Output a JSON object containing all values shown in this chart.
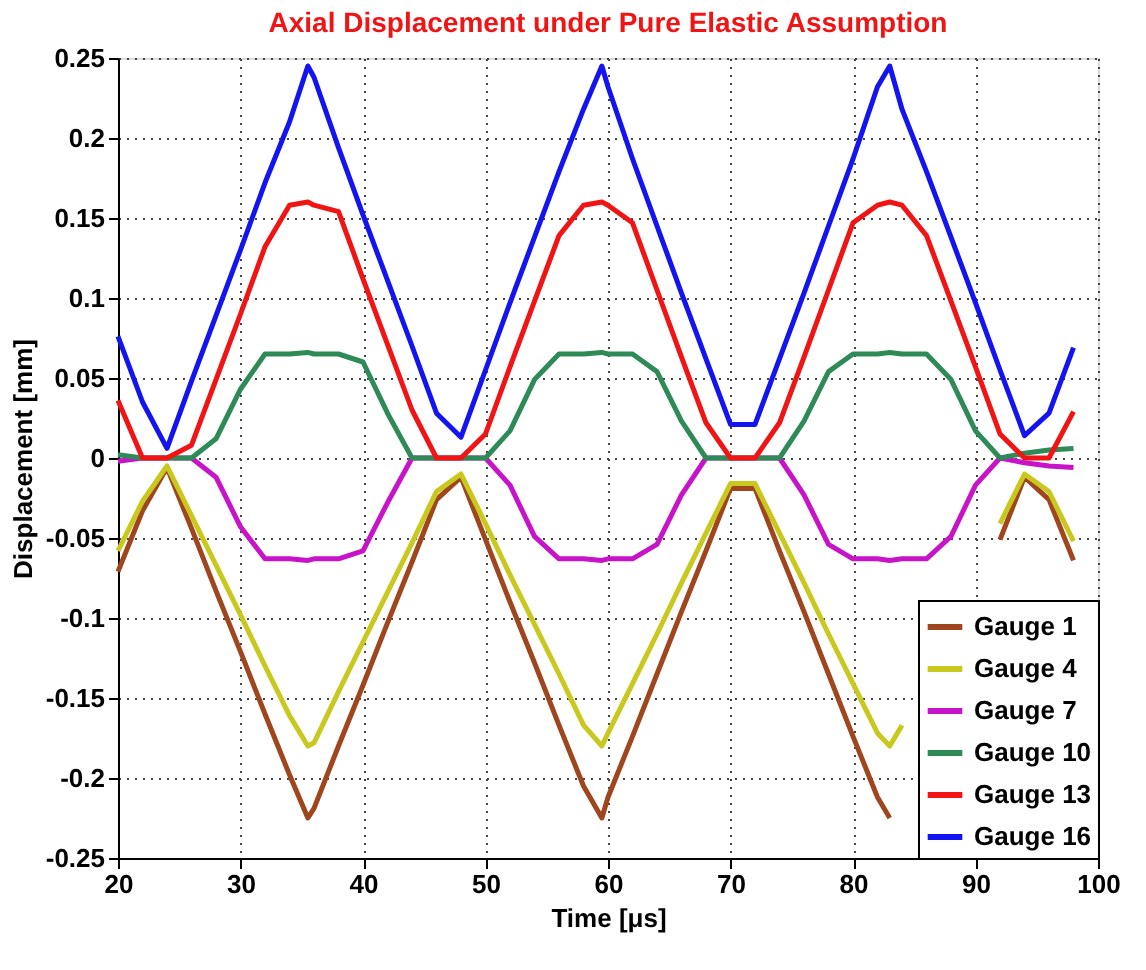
{
  "chart_data": {
    "type": "line",
    "title": "Axial Displacement under Pure Elastic Assumption",
    "xlabel": "Time [μs]",
    "ylabel": "Displacement [mm]",
    "x": [
      20,
      22,
      24,
      26,
      28,
      30,
      32,
      34,
      35.5,
      36,
      38,
      40,
      42,
      44,
      46,
      48,
      50,
      52,
      54,
      56,
      58,
      59.5,
      60,
      62,
      64,
      66,
      68,
      70,
      72,
      74,
      76,
      78,
      80,
      82,
      83,
      84,
      86,
      88,
      90,
      92,
      94,
      96,
      98
    ],
    "series": [
      {
        "name": "Gauge 1",
        "color": "#a0461e",
        "values": [
          -0.071,
          -0.033,
          -0.006,
          -0.044,
          -0.083,
          -0.121,
          -0.16,
          -0.198,
          -0.225,
          -0.219,
          -0.18,
          -0.142,
          -0.103,
          -0.065,
          -0.026,
          -0.012,
          -0.051,
          -0.09,
          -0.128,
          -0.167,
          -0.205,
          -0.225,
          -0.212,
          -0.174,
          -0.135,
          -0.096,
          -0.058,
          -0.019,
          -0.019,
          -0.058,
          -0.096,
          -0.135,
          -0.174,
          -0.212,
          -0.225,
          null,
          null,
          null,
          null,
          -0.051,
          -0.012,
          -0.026,
          -0.064
        ]
      },
      {
        "name": "Gauge 4",
        "color": "#c8c81e",
        "values": [
          -0.058,
          -0.027,
          -0.005,
          -0.036,
          -0.067,
          -0.098,
          -0.13,
          -0.161,
          -0.18,
          -0.178,
          -0.146,
          -0.115,
          -0.084,
          -0.053,
          -0.021,
          -0.01,
          -0.041,
          -0.073,
          -0.104,
          -0.135,
          -0.167,
          -0.18,
          -0.172,
          -0.141,
          -0.11,
          -0.078,
          -0.047,
          -0.016,
          -0.016,
          -0.047,
          -0.078,
          -0.11,
          -0.141,
          -0.172,
          -0.18,
          -0.167,
          null,
          null,
          null,
          -0.041,
          -0.01,
          -0.021,
          -0.052
        ]
      },
      {
        "name": "Gauge 7",
        "color": "#c814c8",
        "values": [
          -0.002,
          0,
          0,
          0,
          -0.012,
          -0.043,
          -0.063,
          -0.063,
          -0.064,
          -0.063,
          -0.063,
          -0.058,
          -0.028,
          0,
          0,
          0,
          0,
          -0.017,
          -0.049,
          -0.063,
          -0.063,
          -0.064,
          -0.063,
          -0.063,
          -0.054,
          -0.023,
          0,
          0,
          0,
          0,
          -0.023,
          -0.054,
          -0.063,
          -0.063,
          -0.064,
          -0.063,
          -0.063,
          -0.049,
          -0.017,
          0,
          -0.003,
          -0.005,
          -0.006
        ]
      },
      {
        "name": "Gauge 10",
        "color": "#2e8b57",
        "values": [
          0.002,
          0,
          0,
          0,
          0.012,
          0.043,
          0.065,
          0.065,
          0.066,
          0.065,
          0.065,
          0.06,
          0.028,
          0,
          0,
          0,
          0,
          0.017,
          0.049,
          0.065,
          0.065,
          0.066,
          0.065,
          0.065,
          0.054,
          0.023,
          0,
          0,
          0,
          0,
          0.023,
          0.054,
          0.065,
          0.065,
          0.066,
          0.065,
          0.065,
          0.049,
          0.017,
          0,
          0.003,
          0.005,
          0.006
        ]
      },
      {
        "name": "Gauge 13",
        "color": "#f01414",
        "values": [
          0.036,
          0,
          0,
          0.008,
          0.049,
          0.09,
          0.132,
          0.158,
          0.16,
          0.158,
          0.154,
          0.112,
          0.071,
          0.03,
          0,
          0,
          0.015,
          0.057,
          0.098,
          0.139,
          0.158,
          0.16,
          0.158,
          0.147,
          0.105,
          0.063,
          0.022,
          0,
          0,
          0.022,
          0.063,
          0.105,
          0.147,
          0.158,
          0.16,
          0.158,
          0.139,
          0.098,
          0.057,
          0.015,
          0,
          0,
          0.029
        ]
      },
      {
        "name": "Gauge 16",
        "color": "#1414f0",
        "values": [
          0.076,
          0.035,
          0.006,
          0.048,
          0.089,
          0.13,
          0.172,
          0.21,
          0.245,
          0.238,
          0.194,
          0.152,
          0.111,
          0.07,
          0.028,
          0.013,
          0.055,
          0.097,
          0.138,
          0.179,
          0.218,
          0.245,
          0.232,
          0.187,
          0.145,
          0.103,
          0.062,
          0.021,
          0.021,
          0.062,
          0.103,
          0.145,
          0.187,
          0.232,
          0.245,
          0.218,
          0.179,
          0.138,
          0.097,
          0.055,
          0.014,
          0.028,
          0.069
        ]
      }
    ],
    "xlim": [
      20,
      100
    ],
    "xticks": [
      20,
      30,
      40,
      50,
      60,
      70,
      80,
      90,
      100
    ],
    "ylim": [
      -0.25,
      0.25
    ],
    "yticks": [
      {
        "value": -0.25,
        "label": "-0.25"
      },
      {
        "value": -0.2,
        "label": "-0.2"
      },
      {
        "value": -0.15,
        "label": "-0.15"
      },
      {
        "value": -0.1,
        "label": "-0.1"
      },
      {
        "value": -0.05,
        "label": "-0.05"
      },
      0,
      0.05,
      0.1,
      0.15,
      0.2,
      0.25
    ],
    "grid": true,
    "legend": "bottom right",
    "line_style": "solid",
    "marker": "none"
  }
}
